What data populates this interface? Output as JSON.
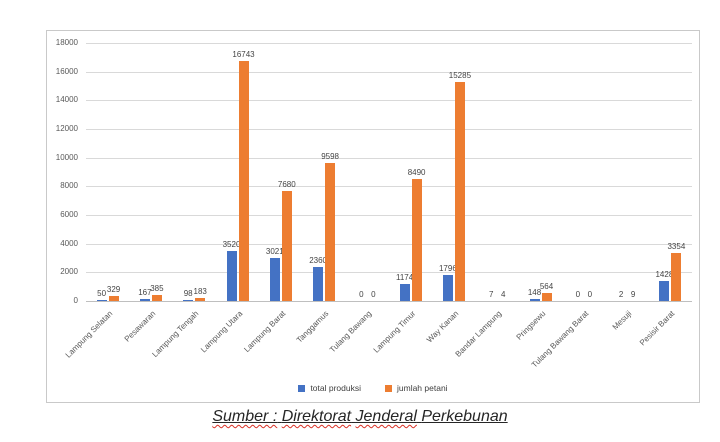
{
  "chart_data": {
    "type": "bar",
    "categories": [
      "Lampung Selatan",
      "Pesawaran",
      "Lampung Tengah",
      "Lampung Utara",
      "Lampung Barat",
      "Tanggamus",
      "Tulang Bawang",
      "Lampung Timur",
      "Way Kanan",
      "Bandar Lampung",
      "Pringsewu",
      "Tulang Bawang Barat",
      "Mesuji",
      "Pesisir Barat"
    ],
    "series": [
      {
        "name": "total produksi",
        "color": "#4472C4",
        "values": [
          50,
          167,
          98,
          3520,
          3021,
          2360,
          0,
          1174,
          1796,
          7,
          148,
          0,
          2,
          1428
        ]
      },
      {
        "name": "jumlah petani",
        "color": "#ED7D31",
        "values": [
          329,
          385,
          183,
          16743,
          7680,
          9598,
          0,
          8490,
          15285,
          4,
          564,
          0,
          9,
          3354
        ]
      }
    ],
    "title": "",
    "xlabel": "",
    "ylabel": "",
    "ylim": [
      0,
      18000
    ],
    "ytick_step": 2000,
    "grid": true,
    "legend_position": "bottom",
    "data_labels": true
  },
  "colors": {
    "series_blue": "#4472C4",
    "series_orange": "#ED7D31",
    "gridline": "#d9d9d9",
    "axis_line": "#bfbfbf",
    "tick_text": "#595959",
    "data_label_text": "#444444",
    "frame_border": "#c9c9c9",
    "caption_text": "#262626",
    "squiggle": "#d93025"
  },
  "caption": {
    "text": "Sumber : Direktorat Jenderal Perkebunan",
    "words": [
      {
        "text": "Sumber :",
        "squiggle": true
      },
      {
        "text": "Direktorat",
        "squiggle": true
      },
      {
        "text": "Jenderal",
        "squiggle": true
      },
      {
        "text": "Perkebunan",
        "squiggle": false
      }
    ]
  }
}
